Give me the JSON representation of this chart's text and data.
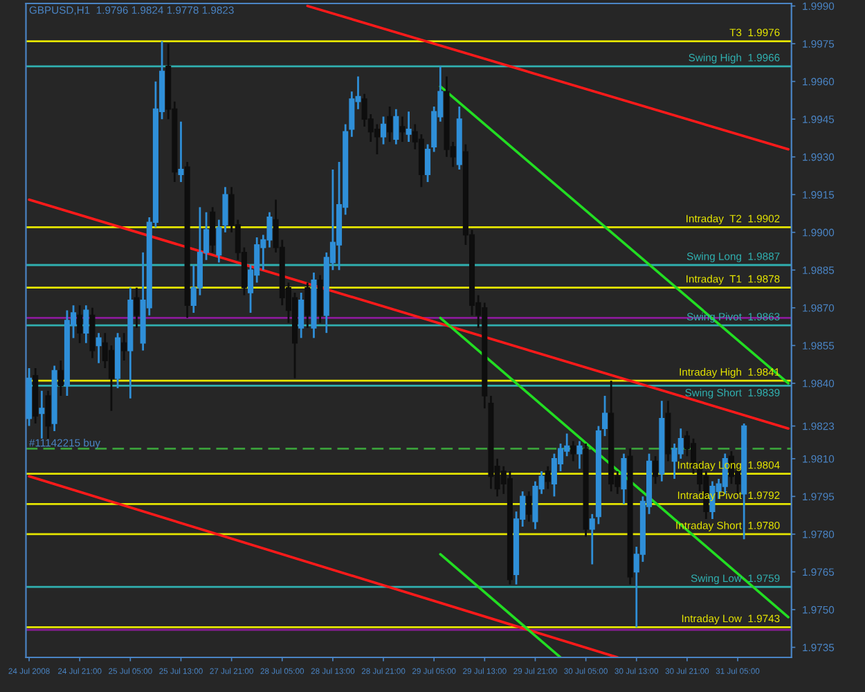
{
  "chart_data": {
    "type": "candlestick",
    "title": "GBPUSD,H1  1.9796 1.9824 1.9778 1.9823",
    "colors": [
      "#2f8fd8",
      "#0e0e0e",
      "#2f8fd8",
      "#0e0e0e",
      "#2f8fd8",
      "#0e0e0e",
      "#2f8fd8",
      "#2f8fd8",
      "#0e0e0e",
      "#2f8fd8",
      "#0e0e0e",
      "#2f8fd8",
      "#0e0e0e",
      "#0e0e0e",
      "#2f8fd8",
      "#0e0e0e",
      "#2f8fd8",
      "#0e0e0e",
      "#2f8fd8",
      "#2f8fd8",
      "#2f8fd8",
      "#2f8fd8",
      "#0e0e0e",
      "#0e0e0e",
      "#2f8fd8",
      "#0e0e0e",
      "#2f8fd8",
      "#2f8fd8",
      "#2f8fd8",
      "#0e0e0e",
      "#2f8fd8",
      "#2f8fd8",
      "#0e0e0e",
      "#0e0e0e",
      "#0e0e0e",
      "#2f8fd8",
      "#2f8fd8",
      "#2f8fd8",
      "#2f8fd8",
      "#0e0e0e",
      "#0e0e0e",
      "#0e0e0e",
      "#0e0e0e",
      "#2f8fd8",
      "#0e0e0e",
      "#2f8fd8",
      "#0e0e0e",
      "#2f8fd8",
      "#2f8fd8",
      "#2f8fd8",
      "#2f8fd8",
      "#2f8fd8",
      "#2f8fd8",
      "#0e0e0e",
      "#0e0e0e",
      "#0e0e0e",
      "#2f8fd8",
      "#0e0e0e",
      "#2f8fd8",
      "#0e0e0e",
      "#2f8fd8",
      "#0e0e0e",
      "#0e0e0e",
      "#2f8fd8",
      "#2f8fd8",
      "#2f8fd8",
      "#0e0e0e",
      "#0e0e0e",
      "#2f8fd8",
      "#0e0e0e",
      "#0e0e0e",
      "#0e0e0e",
      "#0e0e0e",
      "#0e0e0e",
      "#0e0e0e",
      "#0e0e0e",
      "#0e0e0e",
      "#2f8fd8",
      "#2f8fd8",
      "#0e0e0e",
      "#2f8fd8",
      "#2f8fd8",
      "#0e0e0e",
      "#2f8fd8",
      "#2f8fd8",
      "#2f8fd8",
      "#0e0e0e",
      "#2f8fd8",
      "#0e0e0e",
      "#2f8fd8",
      "#2f8fd8",
      "#2f8fd8",
      "#0e0e0e",
      "#0e0e0e",
      "#2f8fd8",
      "#0e0e0e",
      "#2f8fd8",
      "#2f8fd8",
      "#2f8fd8",
      "#0e0e0e",
      "#2f8fd8",
      "#0e0e0e",
      "#2f8fd8",
      "#2f8fd8",
      "#0e0e0e",
      "#0e0e0e",
      "#0e0e0e",
      "#0e0e0e",
      "#2f8fd8",
      "#2f8fd8",
      "#2f8fd8",
      "#0e0e0e",
      "#0e0e0e",
      "#2f8fd8",
      null,
      null,
      null,
      null,
      null,
      null,
      null
    ],
    "categories": [
      "24 Jul 2008",
      null,
      null,
      null,
      null,
      null,
      null,
      null,
      "24 Jul 21:00",
      null,
      null,
      null,
      null,
      null,
      null,
      null,
      "25 Jul 05:00",
      null,
      null,
      null,
      null,
      null,
      null,
      null,
      "25 Jul 13:00",
      null,
      null,
      null,
      null,
      null,
      null,
      null,
      "27 Jul 21:00",
      null,
      null,
      null,
      null,
      null,
      null,
      null,
      "28 Jul 05:00",
      null,
      null,
      null,
      null,
      null,
      null,
      null,
      "28 Jul 13:00",
      null,
      null,
      null,
      null,
      null,
      null,
      null,
      "28 Jul 21:00",
      null,
      null,
      null,
      null,
      null,
      null,
      null,
      "29 Jul 05:00",
      null,
      null,
      null,
      null,
      null,
      null,
      null,
      "29 Jul 13:00",
      null,
      null,
      null,
      null,
      null,
      null,
      null,
      "29 Jul 21:00",
      null,
      null,
      null,
      null,
      null,
      null,
      null,
      "30 Jul 05:00",
      null,
      null,
      null,
      null,
      null,
      null,
      null,
      "30 Jul 13:00",
      null,
      null,
      null,
      null,
      null,
      null,
      null,
      "30 Jul 21:00",
      null,
      null,
      null,
      null,
      null,
      null,
      null,
      "31 Jul 05:00",
      null,
      null,
      null,
      null,
      null,
      null,
      null,
      null
    ],
    "ohlc": [
      [
        1.9826,
        1.9846,
        1.9823,
        1.9842
      ],
      [
        1.9843,
        1.9846,
        1.9824,
        1.9827
      ],
      [
        1.9828,
        1.9837,
        1.9818,
        1.983
      ],
      [
        1.9835,
        1.9837,
        1.9818,
        1.9823
      ],
      [
        1.9824,
        1.9847,
        1.9821,
        1.9845
      ],
      [
        1.9845,
        1.9849,
        1.9835,
        1.9839
      ],
      [
        1.9839,
        1.9869,
        1.9835,
        1.9865
      ],
      [
        1.9863,
        1.9871,
        1.9858,
        1.9868
      ],
      [
        1.9867,
        1.9871,
        1.9856,
        1.986
      ],
      [
        1.986,
        1.9871,
        1.9856,
        1.9869
      ],
      [
        1.9867,
        1.987,
        1.985,
        1.9853
      ],
      [
        1.9855,
        1.986,
        1.9848,
        1.9858
      ],
      [
        1.9856,
        1.986,
        1.9846,
        1.9849
      ],
      [
        1.9853,
        1.9855,
        1.9829,
        1.9842
      ],
      [
        1.9842,
        1.986,
        1.9838,
        1.9858
      ],
      [
        1.9856,
        1.986,
        1.9849,
        1.9853
      ],
      [
        1.9853,
        1.9878,
        1.9834,
        1.9873
      ],
      [
        1.9874,
        1.9878,
        1.9862,
        1.9867
      ],
      [
        1.9856,
        1.9892,
        1.9853,
        1.9873
      ],
      [
        1.987,
        1.9906,
        1.9867,
        1.9904
      ],
      [
        1.9904,
        1.996,
        1.9902,
        1.9949
      ],
      [
        1.9948,
        1.9976,
        1.9945,
        1.9964
      ],
      [
        1.9966,
        1.9975,
        1.9945,
        1.9949
      ],
      [
        1.9949,
        1.9952,
        1.992,
        1.9924
      ],
      [
        1.9923,
        1.9944,
        1.992,
        1.9925
      ],
      [
        1.9926,
        1.9928,
        1.9866,
        1.9871
      ],
      [
        1.9871,
        1.9887,
        1.9868,
        1.9878
      ],
      [
        1.9878,
        1.991,
        1.9875,
        1.9892
      ],
      [
        1.9892,
        1.9908,
        1.9889,
        1.9901
      ],
      [
        1.9908,
        1.991,
        1.9892,
        1.9895
      ],
      [
        1.9891,
        1.9905,
        1.9888,
        1.9902
      ],
      [
        1.9903,
        1.9918,
        1.99,
        1.9915
      ],
      [
        1.9915,
        1.9918,
        1.99,
        1.9903
      ],
      [
        1.9903,
        1.9905,
        1.9889,
        1.9892
      ],
      [
        1.9892,
        1.9894,
        1.9875,
        1.9878
      ],
      [
        1.9876,
        1.9887,
        1.9868,
        1.9885
      ],
      [
        1.9883,
        1.9898,
        1.988,
        1.9895
      ],
      [
        1.9894,
        1.9899,
        1.9885,
        1.9897
      ],
      [
        1.9897,
        1.9908,
        1.9894,
        1.9906
      ],
      [
        1.9905,
        1.9913,
        1.9892,
        1.9894
      ],
      [
        1.9894,
        1.9897,
        1.9871,
        1.9874
      ],
      [
        1.9878,
        1.988,
        1.9864,
        1.9869
      ],
      [
        1.9874,
        1.9876,
        1.9842,
        1.9856
      ],
      [
        1.9862,
        1.9876,
        1.9858,
        1.9873
      ],
      [
        1.9878,
        1.988,
        1.9862,
        1.9867
      ],
      [
        1.9862,
        1.9884,
        1.9858,
        1.9881
      ],
      [
        1.9881,
        1.9883,
        1.9864,
        1.9867
      ],
      [
        1.9867,
        1.9892,
        1.986,
        1.989
      ],
      [
        1.9888,
        1.9925,
        1.9885,
        1.9896
      ],
      [
        1.9895,
        1.9928,
        1.9885,
        1.9911
      ],
      [
        1.991,
        1.9943,
        1.9907,
        1.994
      ],
      [
        1.9941,
        1.9956,
        1.9938,
        1.9953
      ],
      [
        1.9952,
        1.9962,
        1.9949,
        1.9954
      ],
      [
        1.9953,
        1.9955,
        1.9942,
        1.9945
      ],
      [
        1.9945,
        1.9947,
        1.9936,
        1.994
      ],
      [
        1.9941,
        1.9943,
        1.9931,
        1.9938
      ],
      [
        1.9938,
        1.9946,
        1.9935,
        1.9943
      ],
      [
        1.9946,
        1.995,
        1.9936,
        1.994
      ],
      [
        1.9937,
        1.9949,
        1.9935,
        1.9946
      ],
      [
        1.9942,
        1.9946,
        1.9936,
        1.994
      ],
      [
        1.9939,
        1.9948,
        1.9936,
        1.9941
      ],
      [
        1.994,
        1.9943,
        1.9933,
        1.9936
      ],
      [
        1.9937,
        1.9939,
        1.9918,
        1.9923
      ],
      [
        1.9923,
        1.9935,
        1.992,
        1.9933
      ],
      [
        1.9934,
        1.995,
        1.9932,
        1.9948
      ],
      [
        1.9946,
        1.9966,
        1.9944,
        1.9956
      ],
      [
        1.9956,
        1.9962,
        1.993,
        1.9933
      ],
      [
        1.9934,
        1.9936,
        1.9926,
        1.993
      ],
      [
        1.9927,
        1.995,
        1.9925,
        1.9945
      ],
      [
        1.9932,
        1.9935,
        1.9895,
        1.9899
      ],
      [
        1.9899,
        1.9901,
        1.9867,
        1.9871
      ],
      [
        1.9872,
        1.9875,
        1.9862,
        1.9867
      ],
      [
        1.987,
        1.9872,
        1.983,
        1.9835
      ],
      [
        1.9832,
        1.9835,
        1.9798,
        1.9803
      ],
      [
        1.9807,
        1.981,
        1.9795,
        1.9798
      ],
      [
        1.9805,
        1.9807,
        1.9796,
        1.98
      ],
      [
        1.9802,
        1.9805,
        1.976,
        1.9762
      ],
      [
        1.9764,
        1.9789,
        1.976,
        1.9786
      ],
      [
        1.9786,
        1.9797,
        1.9783,
        1.9795
      ],
      [
        1.9795,
        1.9797,
        1.9785,
        1.9788
      ],
      [
        1.9785,
        1.9801,
        1.9782,
        1.9799
      ],
      [
        1.9798,
        1.9805,
        1.9796,
        1.9803
      ],
      [
        1.9805,
        1.9807,
        1.9798,
        1.9801
      ],
      [
        1.98,
        1.9812,
        1.9795,
        1.981
      ],
      [
        1.9808,
        1.9816,
        1.9805,
        1.9814
      ],
      [
        1.9813,
        1.982,
        1.9811,
        1.9815
      ],
      [
        1.9815,
        1.9817,
        1.9809,
        1.9812
      ],
      [
        1.9812,
        1.9817,
        1.9806,
        1.9815
      ],
      [
        1.9814,
        1.9816,
        1.9779,
        1.9782
      ],
      [
        1.9782,
        1.9788,
        1.9768,
        1.9786
      ],
      [
        1.9787,
        1.9823,
        1.9784,
        1.9821
      ],
      [
        1.9822,
        1.9835,
        1.9819,
        1.9828
      ],
      [
        1.9828,
        1.9841,
        1.9797,
        1.98
      ],
      [
        1.9803,
        1.9805,
        1.9796,
        1.9799
      ],
      [
        1.9798,
        1.9812,
        1.9792,
        1.981
      ],
      [
        1.9811,
        1.9814,
        1.976,
        1.9763
      ],
      [
        1.9765,
        1.9775,
        1.9743,
        1.9772
      ],
      [
        1.9772,
        1.9795,
        1.9769,
        1.9793
      ],
      [
        1.9791,
        1.9812,
        1.9788,
        1.9809
      ],
      [
        1.9809,
        1.9811,
        1.98,
        1.9803
      ],
      [
        1.9804,
        1.9833,
        1.9801,
        1.9826
      ],
      [
        1.9828,
        1.9833,
        1.9809,
        1.9812
      ],
      [
        1.9809,
        1.9816,
        1.9802,
        1.9814
      ],
      [
        1.9812,
        1.9822,
        1.981,
        1.9818
      ],
      [
        1.9819,
        1.9821,
        1.9811,
        1.9814
      ],
      [
        1.9816,
        1.9818,
        1.9804,
        1.9807
      ],
      [
        1.9807,
        1.9809,
        1.9797,
        1.98
      ],
      [
        1.9803,
        1.9805,
        1.9786,
        1.9789
      ],
      [
        1.9789,
        1.9801,
        1.9786,
        1.9799
      ],
      [
        1.9797,
        1.9802,
        1.9794,
        1.98
      ],
      [
        1.9799,
        1.9812,
        1.9796,
        1.981
      ],
      [
        1.9811,
        1.9813,
        1.98,
        1.9803
      ],
      [
        1.9805,
        1.9807,
        1.9796,
        1.98
      ],
      [
        1.9796,
        1.9824,
        1.9778,
        1.9823
      ],
      null,
      null,
      null,
      null,
      null,
      null,
      null
    ],
    "series": [
      {
        "type": "line",
        "color": "#ff1a1a",
        "values": [
          null,
          null,
          null,
          null,
          null,
          null,
          null,
          null,
          null,
          null,
          null,
          null,
          null,
          null,
          null,
          null,
          null,
          null,
          null,
          null,
          null,
          null,
          null,
          null,
          null,
          null,
          null,
          null,
          null,
          null,
          null,
          null,
          null,
          null,
          null,
          null,
          null,
          null,
          null,
          null,
          null,
          null,
          null,
          null,
          1.999,
          null,
          null,
          null,
          null,
          null,
          null,
          null,
          null,
          null,
          null,
          null,
          null,
          null,
          null,
          null,
          null,
          null,
          null,
          null,
          null,
          null,
          null,
          null,
          null,
          null,
          null,
          null,
          null,
          null,
          null,
          null,
          null,
          null,
          null,
          null,
          null,
          null,
          null,
          null,
          null,
          null,
          null,
          null,
          null,
          null,
          null,
          null,
          null,
          null,
          null,
          null,
          null,
          null,
          null,
          null,
          null,
          null,
          null,
          null,
          null,
          null,
          null,
          null,
          null,
          null,
          null,
          null,
          null,
          null,
          null,
          null,
          null,
          null,
          null,
          null,
          1.9933
        ]
      },
      {
        "type": "line",
        "color": "#ff1a1a",
        "values": [
          1.9913,
          null,
          null,
          null,
          null,
          null,
          null,
          null,
          null,
          null,
          null,
          null,
          null,
          null,
          null,
          null,
          null,
          null,
          null,
          null,
          null,
          null,
          null,
          null,
          null,
          null,
          null,
          null,
          null,
          null,
          null,
          null,
          null,
          null,
          null,
          null,
          null,
          null,
          null,
          null,
          null,
          null,
          null,
          null,
          null,
          null,
          null,
          null,
          null,
          null,
          null,
          null,
          null,
          null,
          null,
          null,
          null,
          null,
          null,
          null,
          null,
          null,
          null,
          null,
          null,
          null,
          null,
          null,
          null,
          null,
          null,
          null,
          null,
          null,
          null,
          null,
          null,
          null,
          null,
          null,
          null,
          null,
          null,
          null,
          null,
          null,
          null,
          null,
          null,
          null,
          null,
          null,
          null,
          null,
          null,
          null,
          null,
          null,
          null,
          null,
          null,
          null,
          null,
          null,
          null,
          null,
          null,
          null,
          null,
          null,
          null,
          null,
          null,
          null,
          null,
          null,
          null,
          null,
          null,
          null,
          1.9822
        ]
      },
      {
        "type": "line",
        "color": "#ff1a1a",
        "values": [
          1.9803,
          null,
          null,
          null,
          null,
          null,
          null,
          null,
          null,
          null,
          null,
          null,
          null,
          null,
          null,
          null,
          null,
          null,
          null,
          null,
          null,
          null,
          null,
          null,
          null,
          null,
          null,
          null,
          null,
          null,
          null,
          null,
          null,
          null,
          null,
          null,
          null,
          null,
          null,
          null,
          null,
          null,
          null,
          null,
          null,
          null,
          null,
          null,
          null,
          null,
          null,
          null,
          null,
          null,
          null,
          null,
          null,
          null,
          null,
          null,
          null,
          null,
          null,
          null,
          null,
          null,
          null,
          null,
          null,
          null,
          null,
          null,
          null,
          null,
          null,
          null,
          null,
          null,
          null,
          null,
          null,
          null,
          null,
          null,
          null,
          null,
          null,
          null,
          null,
          null,
          null,
          null,
          null,
          1.9731,
          null,
          null,
          null,
          null,
          null,
          null,
          null,
          null,
          null,
          null,
          null,
          null,
          null,
          null,
          null,
          null,
          null,
          null,
          null,
          null,
          null,
          null,
          null,
          null,
          null,
          null,
          null
        ]
      },
      {
        "type": "line",
        "color": "#22dd22",
        "values": [
          null,
          null,
          null,
          null,
          null,
          null,
          null,
          null,
          null,
          null,
          null,
          null,
          null,
          null,
          null,
          null,
          null,
          null,
          null,
          null,
          null,
          null,
          null,
          null,
          null,
          null,
          null,
          null,
          null,
          null,
          null,
          null,
          null,
          null,
          null,
          null,
          null,
          null,
          null,
          null,
          null,
          null,
          null,
          null,
          null,
          null,
          null,
          null,
          null,
          null,
          null,
          null,
          null,
          null,
          null,
          null,
          null,
          null,
          null,
          null,
          null,
          null,
          null,
          null,
          null,
          1.9958,
          null,
          null,
          null,
          null,
          null,
          null,
          null,
          null,
          null,
          null,
          null,
          null,
          null,
          null,
          null,
          null,
          null,
          null,
          null,
          null,
          null,
          null,
          null,
          null,
          null,
          null,
          null,
          null,
          null,
          null,
          null,
          null,
          null,
          null,
          null,
          null,
          null,
          null,
          null,
          null,
          null,
          null,
          null,
          null,
          null,
          null,
          null,
          null,
          null,
          null,
          null,
          null,
          null,
          null,
          1.984
        ]
      },
      {
        "type": "line",
        "color": "#22dd22",
        "values": [
          null,
          null,
          null,
          null,
          null,
          null,
          null,
          null,
          null,
          null,
          null,
          null,
          null,
          null,
          null,
          null,
          null,
          null,
          null,
          null,
          null,
          null,
          null,
          null,
          null,
          null,
          null,
          null,
          null,
          null,
          null,
          null,
          null,
          null,
          null,
          null,
          null,
          null,
          null,
          null,
          null,
          null,
          null,
          null,
          null,
          null,
          null,
          null,
          null,
          null,
          null,
          null,
          null,
          null,
          null,
          null,
          null,
          null,
          null,
          null,
          null,
          null,
          null,
          null,
          null,
          1.9866,
          null,
          null,
          null,
          null,
          null,
          null,
          null,
          null,
          null,
          null,
          null,
          null,
          null,
          null,
          null,
          null,
          null,
          null,
          null,
          null,
          null,
          null,
          null,
          null,
          null,
          null,
          null,
          null,
          null,
          null,
          null,
          null,
          null,
          null,
          null,
          null,
          null,
          null,
          null,
          null,
          null,
          null,
          null,
          null,
          null,
          null,
          null,
          null,
          null,
          null,
          null,
          null,
          null,
          null,
          1.9747
        ]
      },
      {
        "type": "line",
        "color": "#22dd22",
        "values": [
          null,
          null,
          null,
          null,
          null,
          null,
          null,
          null,
          null,
          null,
          null,
          null,
          null,
          null,
          null,
          null,
          null,
          null,
          null,
          null,
          null,
          null,
          null,
          null,
          null,
          null,
          null,
          null,
          null,
          null,
          null,
          null,
          null,
          null,
          null,
          null,
          null,
          null,
          null,
          null,
          null,
          null,
          null,
          null,
          null,
          null,
          null,
          null,
          null,
          null,
          null,
          null,
          null,
          null,
          null,
          null,
          null,
          null,
          null,
          null,
          null,
          null,
          null,
          null,
          null,
          1.9772,
          null,
          null,
          null,
          null,
          null,
          null,
          null,
          null,
          null,
          null,
          null,
          null,
          null,
          null,
          null,
          null,
          null,
          null,
          1.9731,
          null,
          null,
          null,
          null,
          null,
          null,
          null,
          null,
          null,
          null,
          null,
          null,
          null,
          null,
          null,
          null,
          null,
          null,
          null,
          null,
          null,
          null,
          null,
          null,
          null,
          null,
          null,
          null,
          null,
          null,
          null,
          null,
          null,
          null,
          null,
          null
        ]
      }
    ],
    "ylim": [
      1.9731,
      1.9991
    ],
    "yticks": [
      {
        "value": 1.999,
        "label": "1.9990"
      },
      {
        "value": 1.9975,
        "label": "1.9975"
      },
      {
        "value": 1.996,
        "label": "1.9960"
      },
      {
        "value": 1.9945,
        "label": "1.9945"
      },
      {
        "value": 1.993,
        "label": "1.9930"
      },
      {
        "value": 1.9915,
        "label": "1.9915"
      },
      {
        "value": 1.99,
        "label": "1.9900"
      },
      {
        "value": 1.9885,
        "label": "1.9885"
      },
      {
        "value": 1.987,
        "label": "1.9870"
      },
      {
        "value": 1.9855,
        "label": "1.9855"
      },
      {
        "value": 1.984,
        "label": "1.9840"
      },
      {
        "value": 1.9823,
        "label": "1.9823"
      },
      {
        "value": 1.981,
        "label": "1.9810"
      },
      {
        "value": 1.9795,
        "label": "1.9795"
      },
      {
        "value": 1.978,
        "label": "1.9780"
      },
      {
        "value": 1.9765,
        "label": "1.9765"
      },
      {
        "value": 1.975,
        "label": "1.9750"
      },
      {
        "value": 1.9735,
        "label": "1.9735"
      }
    ],
    "ref_lines": [
      {
        "axis": "y",
        "value": 1.9866,
        "color": "#8a1a9a",
        "line_style": "solid"
      },
      {
        "axis": "y",
        "value": 1.9742,
        "color": "#8a1a9a",
        "line_style": "solid"
      },
      {
        "axis": "y",
        "value": 1.9814,
        "color": "#3aa03a",
        "line_style": "dashed"
      },
      {
        "axis": "y",
        "value": 1.9976,
        "label": "T3  1.9976",
        "color": "#e6e600",
        "line_style": "solid"
      },
      {
        "axis": "y",
        "value": 1.9966,
        "label": "Swing High  1.9966",
        "color": "#30b0b0",
        "line_style": "solid"
      },
      {
        "axis": "y",
        "value": 1.9902,
        "label": "Intraday  T2  1.9902",
        "color": "#e6e600",
        "line_style": "solid"
      },
      {
        "axis": "y",
        "value": 1.9887,
        "label": "Swing Long  1.9887",
        "color": "#30b0b0",
        "line_style": "solid"
      },
      {
        "axis": "y",
        "value": 1.9878,
        "label": "Intraday  T1  1.9878",
        "color": "#e6e600",
        "line_style": "solid"
      },
      {
        "axis": "y",
        "value": 1.9863,
        "label": "Swing Pivot  1.9863",
        "color": "#30b0b0",
        "line_style": "solid"
      },
      {
        "axis": "y",
        "value": 1.9841,
        "label": "Intraday High  1.9841",
        "color": "#e6e600",
        "line_style": "solid"
      },
      {
        "axis": "y",
        "value": 1.9839,
        "label": "Swing Short  1.9839",
        "color": "#30b0b0",
        "line_style": "solid"
      },
      {
        "axis": "y",
        "value": 1.9804,
        "label": "Intraday Long  1.9804",
        "color": "#e6e600",
        "line_style": "solid"
      },
      {
        "axis": "y",
        "value": 1.9792,
        "label": "Intraday Pivot  1.9792",
        "color": "#e6e600",
        "line_style": "solid"
      },
      {
        "axis": "y",
        "value": 1.978,
        "label": "Intraday Short  1.9780",
        "color": "#e6e600",
        "line_style": "solid"
      },
      {
        "axis": "y",
        "value": 1.9759,
        "label": "Swing Low  1.9759",
        "color": "#30b0b0",
        "line_style": "solid"
      },
      {
        "axis": "y",
        "value": 1.9743,
        "label": "Intraday Low  1.9743",
        "color": "#e6e600",
        "line_style": "solid"
      }
    ],
    "annotations": [
      {
        "text": "#11142215 buy",
        "y": 1.9814
      }
    ]
  }
}
